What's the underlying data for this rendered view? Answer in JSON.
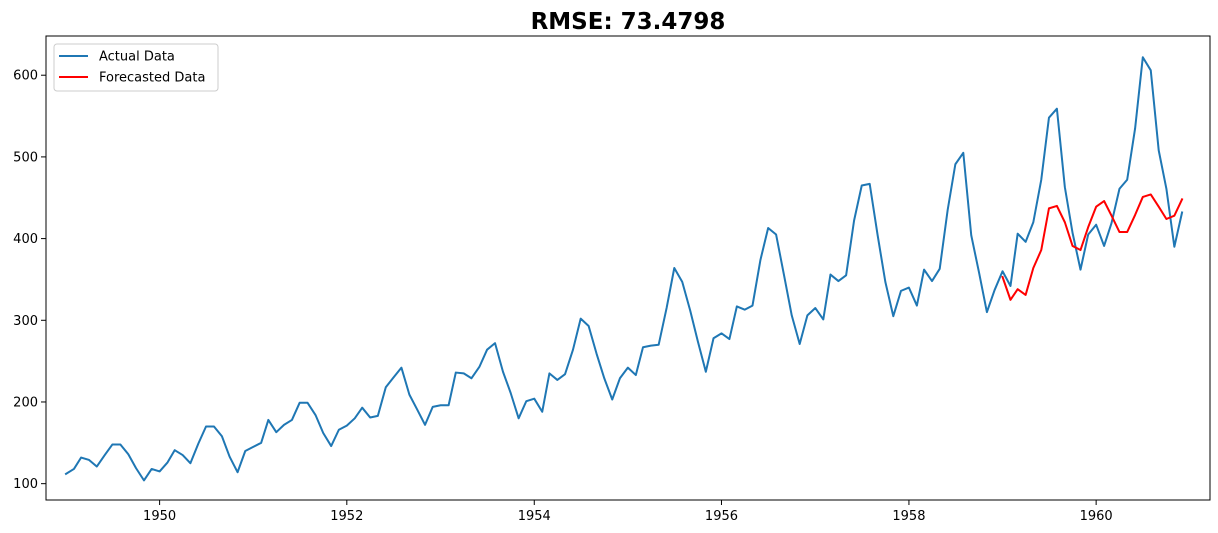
{
  "chart_data": {
    "type": "line",
    "title": "RMSE: 73.4798",
    "xlabel": "",
    "ylabel": "",
    "x_axis": {
      "type": "date",
      "range": [
        "1948-10-15",
        "1961-03-20"
      ],
      "ticks": [
        {
          "value": "1950-01-01",
          "label": "1950"
        },
        {
          "value": "1952-01-01",
          "label": "1952"
        },
        {
          "value": "1954-01-01",
          "label": "1954"
        },
        {
          "value": "1956-01-01",
          "label": "1956"
        },
        {
          "value": "1958-01-01",
          "label": "1958"
        },
        {
          "value": "1960-01-01",
          "label": "1960"
        }
      ]
    },
    "y_axis": {
      "range": [
        80,
        648
      ],
      "ticks": [
        100,
        200,
        300,
        400,
        500,
        600
      ]
    },
    "grid": false,
    "legend": {
      "placement": "upper-left",
      "entries": [
        "Actual Data",
        "Forecasted Data"
      ]
    },
    "series": [
      {
        "name": "Actual Data",
        "color": "#1f77b4",
        "start": "1949-01",
        "frequency": "monthly",
        "values": [
          112,
          118,
          132,
          129,
          121,
          135,
          148,
          148,
          136,
          119,
          104,
          118,
          115,
          126,
          141,
          135,
          125,
          149,
          170,
          170,
          158,
          133,
          114,
          140,
          145,
          150,
          178,
          163,
          172,
          178,
          199,
          199,
          184,
          162,
          146,
          166,
          171,
          180,
          193,
          181,
          183,
          218,
          230,
          242,
          209,
          191,
          172,
          194,
          196,
          196,
          236,
          235,
          229,
          243,
          264,
          272,
          237,
          211,
          180,
          201,
          204,
          188,
          235,
          227,
          234,
          264,
          302,
          293,
          259,
          229,
          203,
          229,
          242,
          233,
          267,
          269,
          270,
          315,
          364,
          347,
          312,
          274,
          237,
          278,
          284,
          277,
          317,
          313,
          318,
          374,
          413,
          405,
          355,
          306,
          271,
          306,
          315,
          301,
          356,
          348,
          355,
          422,
          465,
          467,
          404,
          347,
          305,
          336,
          340,
          318,
          362,
          348,
          363,
          435,
          491,
          505,
          404,
          359,
          310,
          337,
          360,
          342,
          406,
          396,
          420,
          472,
          548,
          559,
          463,
          407,
          362,
          405,
          417,
          391,
          419,
          461,
          472,
          535,
          622,
          606,
          508,
          461,
          390,
          432
        ]
      },
      {
        "name": "Forecasted Data",
        "color": "#ff0000",
        "start": "1959-01",
        "frequency": "monthly",
        "values": [
          353,
          325,
          338,
          331,
          364,
          386,
          437,
          440,
          420,
          391,
          386,
          414,
          439,
          446,
          428,
          408,
          408,
          429,
          451,
          454,
          439,
          424,
          428,
          448
        ]
      }
    ]
  }
}
